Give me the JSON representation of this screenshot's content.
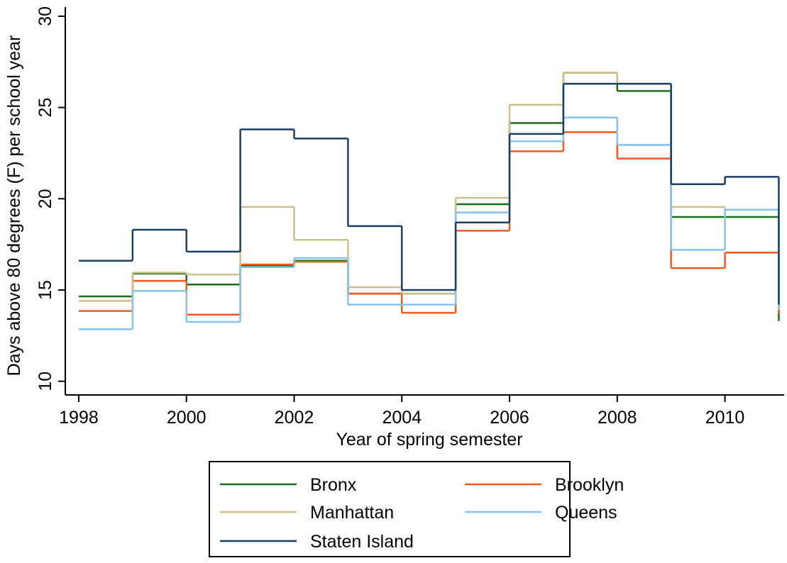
{
  "chart_data": {
    "type": "step",
    "x": [
      1998,
      1999,
      2000,
      2001,
      2002,
      2003,
      2004,
      2005,
      2006,
      2007,
      2008,
      2009,
      2010,
      2011
    ],
    "series": [
      {
        "name": "Bronx",
        "color": "#1a6e1a",
        "values": [
          14.65,
          15.9,
          15.3,
          16.35,
          16.6,
          14.8,
          14.8,
          19.7,
          24.15,
          26.9,
          25.9,
          19.0,
          19.0,
          13.3
        ]
      },
      {
        "name": "Brooklyn",
        "color": "#f05a1e",
        "values": [
          13.85,
          15.5,
          13.65,
          16.4,
          16.55,
          14.8,
          13.75,
          18.25,
          22.6,
          23.65,
          22.2,
          16.2,
          17.05,
          13.7
        ]
      },
      {
        "name": "Manhattan",
        "color": "#cdbf8a",
        "values": [
          14.4,
          15.95,
          15.85,
          19.55,
          17.75,
          15.15,
          14.8,
          20.05,
          25.15,
          26.9,
          26.3,
          19.55,
          19.4,
          14.1
        ]
      },
      {
        "name": "Queens",
        "color": "#87c3ea",
        "values": [
          12.85,
          14.95,
          13.25,
          16.25,
          16.75,
          14.2,
          14.2,
          19.25,
          23.15,
          24.45,
          22.95,
          17.2,
          19.4,
          13.9
        ]
      },
      {
        "name": "Staten Island",
        "color": "#1c3f64",
        "values": [
          16.6,
          18.3,
          17.1,
          23.8,
          23.3,
          18.5,
          15.0,
          18.7,
          23.55,
          26.3,
          26.3,
          20.8,
          21.2,
          14.2
        ]
      }
    ],
    "xlabel": "Year of spring semester",
    "ylabel": "Days above 80 degrees (F) per school year",
    "xlim": [
      1997.75,
      2011.1
    ],
    "xticks": [
      1998,
      2000,
      2002,
      2004,
      2006,
      2008,
      2010
    ],
    "ylim": [
      9.25,
      30.5
    ],
    "yticks": [
      10,
      15,
      20,
      25,
      30
    ]
  }
}
